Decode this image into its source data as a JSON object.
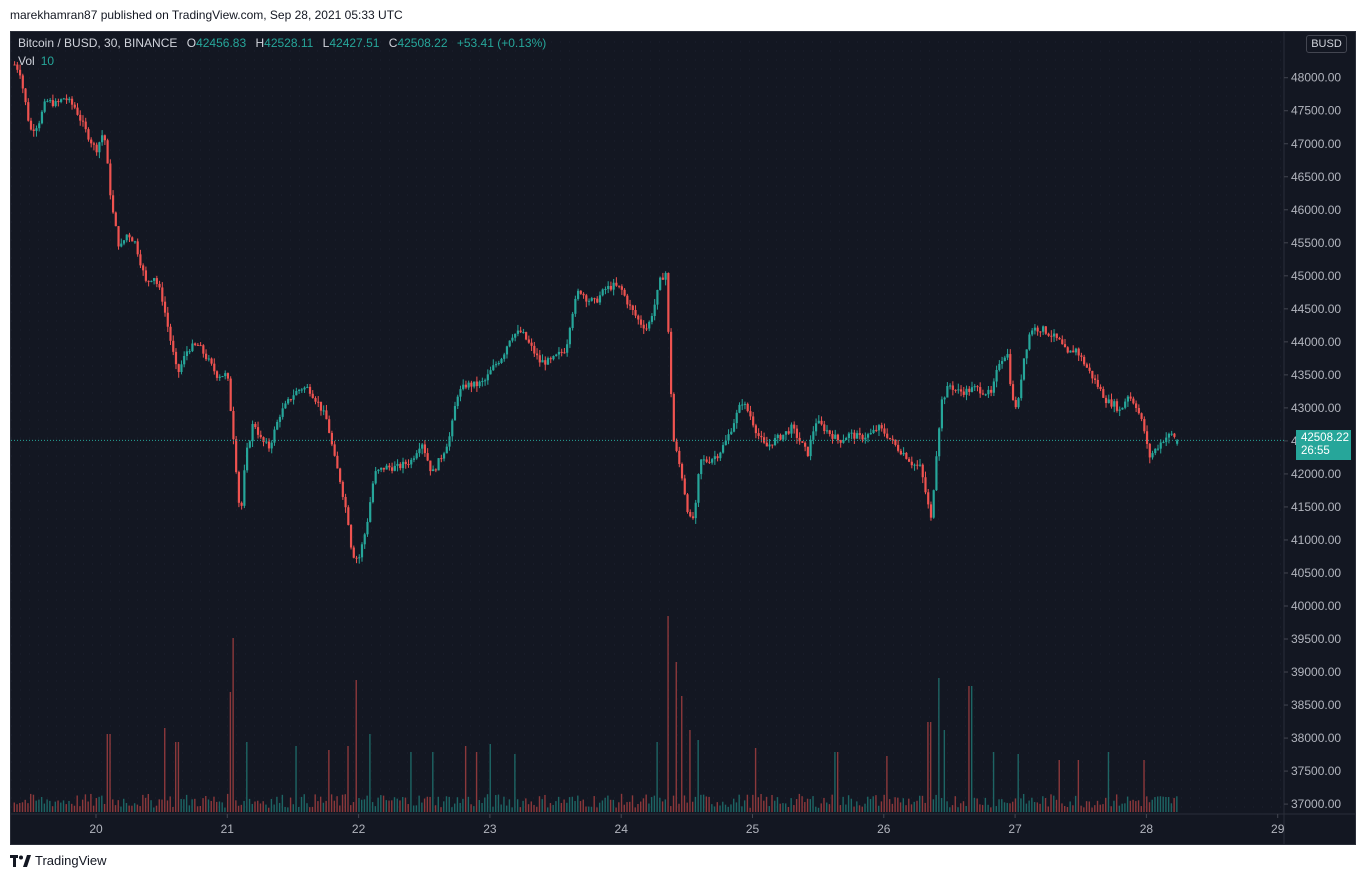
{
  "publisher": "marekhamran87 published on TradingView.com, Sep 28, 2021 05:33 UTC",
  "legend": {
    "symbol": "Bitcoin / BUSD, 30, BINANCE",
    "o_label": "O",
    "o_value": "42456.83",
    "h_label": "H",
    "h_value": "42528.11",
    "l_label": "L",
    "l_value": "42427.51",
    "c_label": "C",
    "c_value": "42508.22",
    "change": "+53.41 (+0.13%)"
  },
  "volume_legend": {
    "label": "Vol",
    "value": "10"
  },
  "currency_button": "BUSD",
  "last_price": {
    "price": "42508.22",
    "countdown": "26:55"
  },
  "footer": {
    "brand": "TradingView",
    "logo_icon": "tradingview-logo-icon"
  },
  "colors": {
    "background": "#131722",
    "up": "#26a69a",
    "down": "#ef5350",
    "text": "#b2b5be",
    "price_line": "#26a69a"
  },
  "chart_data": {
    "type": "candlestick",
    "y_ticks": [
      "48000.00",
      "47500.00",
      "47000.00",
      "46500.00",
      "46000.00",
      "45500.00",
      "45000.00",
      "44500.00",
      "44000.00",
      "43500.00",
      "43000.00",
      "42500.00",
      "42000.00",
      "41500.00",
      "41000.00",
      "40500.00",
      "40000.00",
      "39500.00",
      "39000.00",
      "38500.00",
      "38000.00",
      "37500.00",
      "37000.00"
    ],
    "x_ticks": [
      "20",
      "21",
      "22",
      "23",
      "24",
      "25",
      "26",
      "27",
      "28",
      "29"
    ],
    "ylim": [
      36850,
      48450
    ],
    "last_price": 42508.22,
    "path": [
      [
        19.38,
        48200
      ],
      [
        19.42,
        48100
      ],
      [
        19.5,
        47200
      ],
      [
        19.56,
        47300
      ],
      [
        19.62,
        47650
      ],
      [
        19.7,
        47600
      ],
      [
        19.76,
        47700
      ],
      [
        19.84,
        47550
      ],
      [
        19.92,
        47200
      ],
      [
        20.0,
        46900
      ],
      [
        20.06,
        47200
      ],
      [
        20.12,
        46050
      ],
      [
        20.18,
        45400
      ],
      [
        20.24,
        45650
      ],
      [
        20.3,
        45500
      ],
      [
        20.38,
        44900
      ],
      [
        20.44,
        45000
      ],
      [
        20.5,
        44700
      ],
      [
        20.56,
        44100
      ],
      [
        20.62,
        43500
      ],
      [
        20.7,
        43900
      ],
      [
        20.78,
        43950
      ],
      [
        20.86,
        43700
      ],
      [
        20.92,
        43500
      ],
      [
        21.0,
        43500
      ],
      [
        21.05,
        42500
      ],
      [
        21.1,
        41300
      ],
      [
        21.14,
        42250
      ],
      [
        21.2,
        42800
      ],
      [
        21.26,
        42500
      ],
      [
        21.32,
        42400
      ],
      [
        21.4,
        42900
      ],
      [
        21.5,
        43200
      ],
      [
        21.56,
        43300
      ],
      [
        21.62,
        43300
      ],
      [
        21.7,
        43050
      ],
      [
        21.76,
        42800
      ],
      [
        21.82,
        42200
      ],
      [
        21.86,
        41900
      ],
      [
        21.92,
        41300
      ],
      [
        21.95,
        40800
      ],
      [
        22.0,
        40700
      ],
      [
        22.06,
        41200
      ],
      [
        22.12,
        42000
      ],
      [
        22.2,
        42100
      ],
      [
        22.3,
        42100
      ],
      [
        22.4,
        42200
      ],
      [
        22.48,
        42500
      ],
      [
        22.56,
        42000
      ],
      [
        22.64,
        42300
      ],
      [
        22.7,
        42600
      ],
      [
        22.75,
        43200
      ],
      [
        22.82,
        43350
      ],
      [
        22.9,
        43350
      ],
      [
        22.96,
        43400
      ],
      [
        23.02,
        43600
      ],
      [
        23.1,
        43800
      ],
      [
        23.16,
        44100
      ],
      [
        23.24,
        44150
      ],
      [
        23.32,
        43900
      ],
      [
        23.38,
        43700
      ],
      [
        23.46,
        43700
      ],
      [
        23.52,
        43800
      ],
      [
        23.58,
        43900
      ],
      [
        23.62,
        44400
      ],
      [
        23.68,
        44800
      ],
      [
        23.74,
        44650
      ],
      [
        23.8,
        44600
      ],
      [
        23.88,
        44800
      ],
      [
        23.94,
        44850
      ],
      [
        24.0,
        44800
      ],
      [
        24.06,
        44550
      ],
      [
        24.14,
        44300
      ],
      [
        24.2,
        44200
      ],
      [
        24.26,
        44600
      ],
      [
        24.3,
        44950
      ],
      [
        24.34,
        45050
      ],
      [
        24.37,
        43600
      ],
      [
        24.4,
        42500
      ],
      [
        24.46,
        42000
      ],
      [
        24.52,
        41300
      ],
      [
        24.56,
        41350
      ],
      [
        24.6,
        42200
      ],
      [
        24.66,
        42200
      ],
      [
        24.74,
        42300
      ],
      [
        24.8,
        42500
      ],
      [
        24.86,
        42800
      ],
      [
        24.92,
        43100
      ],
      [
        24.98,
        42900
      ],
      [
        25.04,
        42600
      ],
      [
        25.1,
        42400
      ],
      [
        25.16,
        42500
      ],
      [
        25.24,
        42600
      ],
      [
        25.3,
        42700
      ],
      [
        25.36,
        42500
      ],
      [
        25.42,
        42300
      ],
      [
        25.48,
        42800
      ],
      [
        25.54,
        42700
      ],
      [
        25.6,
        42600
      ],
      [
        25.66,
        42500
      ],
      [
        25.74,
        42600
      ],
      [
        25.82,
        42550
      ],
      [
        25.9,
        42600
      ],
      [
        25.96,
        42700
      ],
      [
        26.02,
        42600
      ],
      [
        26.1,
        42400
      ],
      [
        26.16,
        42300
      ],
      [
        26.22,
        42150
      ],
      [
        26.28,
        42100
      ],
      [
        26.32,
        41700
      ],
      [
        26.36,
        41300
      ],
      [
        26.4,
        42300
      ],
      [
        26.44,
        43100
      ],
      [
        26.5,
        43350
      ],
      [
        26.56,
        43250
      ],
      [
        26.62,
        43250
      ],
      [
        26.7,
        43300
      ],
      [
        26.76,
        43250
      ],
      [
        26.82,
        43200
      ],
      [
        26.88,
        43700
      ],
      [
        26.94,
        43850
      ],
      [
        26.98,
        43100
      ],
      [
        27.02,
        43000
      ],
      [
        27.06,
        43700
      ],
      [
        27.12,
        44200
      ],
      [
        27.2,
        44200
      ],
      [
        27.28,
        44100
      ],
      [
        27.34,
        44000
      ],
      [
        27.4,
        43800
      ],
      [
        27.46,
        43900
      ],
      [
        27.52,
        43700
      ],
      [
        27.58,
        43500
      ],
      [
        27.64,
        43300
      ],
      [
        27.7,
        43100
      ],
      [
        27.76,
        43050
      ],
      [
        27.8,
        42950
      ],
      [
        27.86,
        43200
      ],
      [
        27.92,
        43050
      ],
      [
        27.98,
        42700
      ],
      [
        28.02,
        42250
      ],
      [
        28.08,
        42400
      ],
      [
        28.14,
        42550
      ],
      [
        28.2,
        42600
      ],
      [
        28.24,
        42508
      ]
    ],
    "volume_spikes": [
      [
        20.1,
        390
      ],
      [
        20.52,
        420
      ],
      [
        20.62,
        350
      ],
      [
        21.02,
        600
      ],
      [
        21.05,
        870
      ],
      [
        21.15,
        350
      ],
      [
        21.52,
        330
      ],
      [
        21.78,
        310
      ],
      [
        21.92,
        330
      ],
      [
        21.98,
        660
      ],
      [
        22.08,
        390
      ],
      [
        22.4,
        300
      ],
      [
        22.56,
        300
      ],
      [
        22.82,
        330
      ],
      [
        22.9,
        300
      ],
      [
        23.0,
        340
      ],
      [
        23.2,
        290
      ],
      [
        24.28,
        350
      ],
      [
        24.36,
        980
      ],
      [
        24.42,
        750
      ],
      [
        24.47,
        580
      ],
      [
        24.52,
        410
      ],
      [
        24.58,
        360
      ],
      [
        25.02,
        320
      ],
      [
        25.64,
        300
      ],
      [
        26.02,
        280
      ],
      [
        26.35,
        450
      ],
      [
        26.42,
        670
      ],
      [
        26.46,
        410
      ],
      [
        26.66,
        630
      ],
      [
        26.84,
        300
      ],
      [
        27.02,
        290
      ],
      [
        27.34,
        260
      ],
      [
        27.48,
        260
      ],
      [
        27.72,
        300
      ],
      [
        27.98,
        260
      ]
    ],
    "volume_baseline": 70,
    "volume_max": 1000
  }
}
